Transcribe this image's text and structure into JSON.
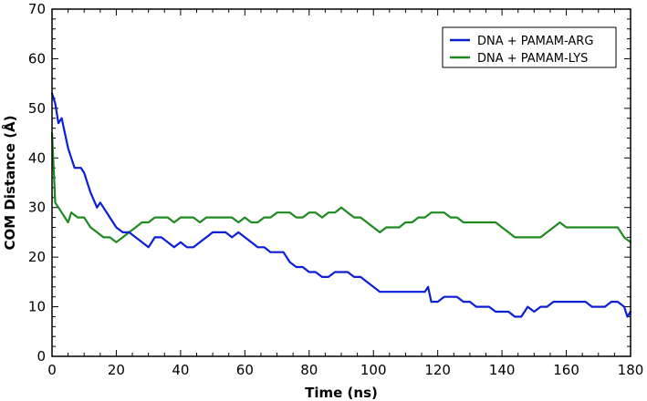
{
  "chart_data": {
    "type": "line",
    "xlabel": "Time (ns)",
    "ylabel": "COM Distance (Å)",
    "xlim": [
      0,
      180
    ],
    "ylim": [
      0,
      70
    ],
    "xticks": [
      0,
      20,
      40,
      60,
      80,
      100,
      120,
      140,
      160,
      180
    ],
    "yticks": [
      0,
      10,
      20,
      30,
      40,
      50,
      60,
      70
    ],
    "grid": false,
    "legend_position": "top-right",
    "series": [
      {
        "name": "DNA + PAMAM-ARG",
        "color": "#0b1fd6",
        "x": [
          0,
          1,
          2,
          3,
          4,
          5,
          6,
          7,
          8,
          9,
          10,
          11,
          12,
          14,
          15,
          16,
          18,
          20,
          22,
          24,
          26,
          28,
          30,
          32,
          34,
          36,
          38,
          40,
          42,
          44,
          46,
          48,
          50,
          52,
          54,
          56,
          58,
          60,
          62,
          64,
          66,
          68,
          70,
          72,
          74,
          76,
          78,
          80,
          82,
          84,
          86,
          88,
          90,
          92,
          94,
          96,
          98,
          100,
          102,
          104,
          106,
          108,
          110,
          112,
          114,
          116,
          117,
          118,
          120,
          122,
          124,
          126,
          128,
          130,
          132,
          134,
          136,
          138,
          140,
          142,
          144,
          146,
          148,
          150,
          152,
          154,
          156,
          158,
          160,
          162,
          164,
          166,
          168,
          170,
          172,
          174,
          176,
          178,
          179,
          180
        ],
        "y": [
          53,
          51,
          47,
          48,
          45,
          42,
          40,
          38,
          38,
          38,
          37,
          35,
          33,
          30,
          31,
          30,
          28,
          26,
          25,
          25,
          24,
          23,
          22,
          24,
          24,
          23,
          22,
          23,
          22,
          22,
          23,
          24,
          25,
          25,
          25,
          24,
          25,
          24,
          23,
          22,
          22,
          21,
          21,
          21,
          19,
          18,
          18,
          17,
          17,
          16,
          16,
          17,
          17,
          17,
          16,
          16,
          15,
          14,
          13,
          13,
          13,
          13,
          13,
          13,
          13,
          13,
          14,
          11,
          11,
          12,
          12,
          12,
          11,
          11,
          10,
          10,
          10,
          9,
          9,
          9,
          8,
          8,
          10,
          9,
          10,
          10,
          11,
          11,
          11,
          11,
          11,
          11,
          10,
          10,
          10,
          11,
          11,
          10,
          8,
          9
        ]
      },
      {
        "name": "DNA + PAMAM-LYS",
        "color": "#1f8a1f",
        "x": [
          0,
          0.5,
          1,
          2,
          3,
          4,
          5,
          6,
          8,
          10,
          12,
          14,
          16,
          18,
          20,
          22,
          24,
          26,
          28,
          30,
          32,
          34,
          36,
          38,
          40,
          42,
          44,
          46,
          48,
          50,
          52,
          54,
          56,
          58,
          60,
          62,
          64,
          66,
          68,
          70,
          72,
          74,
          76,
          78,
          80,
          82,
          84,
          86,
          88,
          90,
          92,
          94,
          96,
          98,
          100,
          102,
          104,
          106,
          108,
          110,
          112,
          114,
          116,
          118,
          120,
          122,
          124,
          126,
          128,
          130,
          132,
          134,
          136,
          138,
          140,
          142,
          144,
          146,
          148,
          150,
          152,
          154,
          156,
          158,
          160,
          162,
          164,
          166,
          168,
          170,
          172,
          174,
          176,
          178,
          180
        ],
        "y": [
          45,
          38,
          31,
          30,
          29,
          28,
          27,
          29,
          28,
          28,
          26,
          25,
          24,
          24,
          23,
          24,
          25,
          26,
          27,
          27,
          28,
          28,
          28,
          27,
          28,
          28,
          28,
          27,
          28,
          28,
          28,
          28,
          28,
          27,
          28,
          27,
          27,
          28,
          28,
          29,
          29,
          29,
          28,
          28,
          29,
          29,
          28,
          29,
          29,
          30,
          29,
          28,
          28,
          27,
          26,
          25,
          26,
          26,
          26,
          27,
          27,
          28,
          28,
          29,
          29,
          29,
          28,
          28,
          27,
          27,
          27,
          27,
          27,
          27,
          26,
          25,
          24,
          24,
          24,
          24,
          24,
          25,
          26,
          27,
          26,
          26,
          26,
          26,
          26,
          26,
          26,
          26,
          26,
          24,
          23
        ]
      }
    ]
  }
}
